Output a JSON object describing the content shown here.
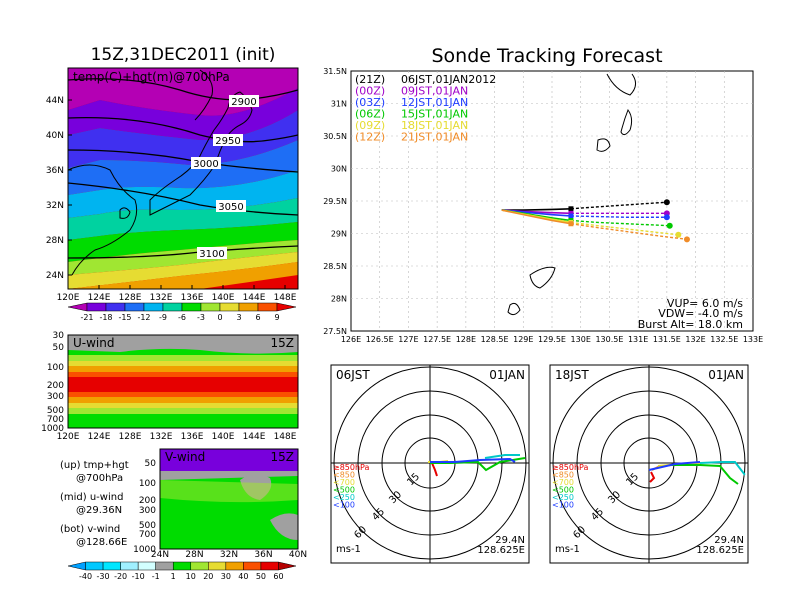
{
  "left_title": "15Z,31DEC2011 (init)",
  "right_title": "Sonde Tracking Forecast",
  "map": {
    "label": "temp(C)+hgt(m)@700hPa",
    "lat_ticks": [
      "44N",
      "40N",
      "36N",
      "32N",
      "28N",
      "24N"
    ],
    "lon_ticks": [
      "120E",
      "124E",
      "128E",
      "132E",
      "136E",
      "140E",
      "144E",
      "148E"
    ],
    "contours": [
      "2900",
      "2950",
      "3000",
      "3050",
      "3100"
    ],
    "cbar_labels": [
      "-21",
      "-18",
      "-15",
      "-12",
      "-9",
      "-6",
      "-3",
      "0",
      "3",
      "6",
      "9"
    ],
    "cbar_colors": [
      "#b400b4",
      "#7800dc",
      "#4030f0",
      "#1e6ef5",
      "#00b4f0",
      "#00d2a0",
      "#00dc00",
      "#a0e632",
      "#e6dc32",
      "#f0a000",
      "#fa5000",
      "#e60000"
    ]
  },
  "uwind": {
    "title": "U-wind",
    "time": "15Z",
    "p_ticks": [
      "30",
      "50",
      "100",
      "200",
      "300",
      "500",
      "700",
      "1000"
    ],
    "lon_ticks": [
      "120E",
      "124E",
      "128E",
      "132E",
      "136E",
      "140E",
      "144E",
      "148E"
    ]
  },
  "vwind": {
    "title": "V-wind",
    "time": "15Z",
    "p_ticks": [
      "50",
      "100",
      "200",
      "300",
      "500",
      "700",
      "1000"
    ],
    "lat_ticks": [
      "24N",
      "28N",
      "32N",
      "36N",
      "40N"
    ]
  },
  "wind_cbar": {
    "labels": [
      "-40",
      "-30",
      "-20",
      "-10",
      "-1",
      "1",
      "10",
      "20",
      "30",
      "40",
      "50",
      "60"
    ],
    "colors": [
      "#00a0ff",
      "#00c8ff",
      "#00e6ff",
      "#a0f0ff",
      "#d2ffff",
      "#a0a0a0",
      "#00dc00",
      "#a0e632",
      "#e6dc32",
      "#f0a000",
      "#fa5000",
      "#e60000",
      "#b40000"
    ]
  },
  "legend_notes": [
    "(up) tmp+hgt",
    "@700hPa",
    "(mid) u-wind",
    "@29.36N",
    "(bot) v-wind",
    "@128.66E"
  ],
  "track": {
    "legend": [
      {
        "code": "(21Z)",
        "text": "06JST,01JAN2012",
        "color": "#000000"
      },
      {
        "code": "(00Z)",
        "text": "09JST,01JAN",
        "color": "#a000c8"
      },
      {
        "code": "(03Z)",
        "text": "12JST,01JAN",
        "color": "#1e3cff"
      },
      {
        "code": "(06Z)",
        "text": "15JST,01JAN",
        "color": "#00c800"
      },
      {
        "code": "(09Z)",
        "text": "18JST,01JAN",
        "color": "#e6dc32"
      },
      {
        "code": "(12Z)",
        "text": "21JST,01JAN",
        "color": "#f08c28"
      }
    ],
    "lat_ticks": [
      "31.5N",
      "31N",
      "30.5N",
      "30N",
      "29.5N",
      "29N",
      "28.5N",
      "28N",
      "27.5N"
    ],
    "lon_ticks": [
      "126E",
      "126.5E",
      "127E",
      "127.5E",
      "128E",
      "128.5E",
      "129E",
      "129.5E",
      "130E",
      "130.5E",
      "131E",
      "131.5E",
      "132E",
      "132.5E",
      "133E"
    ],
    "vup": "VUP= 6.0 m/s",
    "vdw": "VDW= -4.0 m/s",
    "burst": "Burst Alt= 18.0 km"
  },
  "chart_data": {
    "type": "line",
    "title": "Sonde Tracking Forecast",
    "xlim": [
      126,
      133
    ],
    "ylim": [
      27.5,
      31.5
    ],
    "launch": {
      "lon": 128.625,
      "lat": 29.36
    },
    "series": [
      {
        "name": "(21Z) 06JST,01JAN2012",
        "lon": [
          128.625,
          129.0,
          129.5,
          129.83,
          130.3,
          130.8,
          131.3,
          131.5
        ],
        "lat": [
          29.36,
          29.36,
          29.37,
          29.38,
          29.41,
          29.44,
          29.47,
          29.48
        ],
        "burst": {
          "lon": 129.83,
          "lat": 29.38
        }
      },
      {
        "name": "(00Z) 09JST,01JAN",
        "lon": [
          128.625,
          129.0,
          129.5,
          129.83,
          130.3,
          130.8,
          131.3,
          131.5
        ],
        "lat": [
          29.36,
          29.34,
          29.32,
          29.31,
          29.31,
          29.31,
          29.31,
          29.31
        ],
        "burst": {
          "lon": 129.83,
          "lat": 29.31
        }
      },
      {
        "name": "(03Z) 12JST,01JAN",
        "lon": [
          128.625,
          129.0,
          129.5,
          129.83,
          130.3,
          130.8,
          131.3,
          131.5
        ],
        "lat": [
          29.36,
          29.33,
          29.29,
          29.27,
          29.26,
          29.25,
          29.25,
          29.25
        ],
        "burst": {
          "lon": 129.83,
          "lat": 29.27
        }
      },
      {
        "name": "(06Z) 15JST,01JAN",
        "lon": [
          128.625,
          129.0,
          129.5,
          129.83,
          130.3,
          130.8,
          131.3,
          131.55
        ],
        "lat": [
          29.36,
          29.31,
          29.24,
          29.2,
          29.17,
          29.15,
          29.13,
          29.12
        ],
        "burst": {
          "lon": 129.83,
          "lat": 29.2
        }
      },
      {
        "name": "(09Z) 18JST,01JAN",
        "lon": [
          128.625,
          129.0,
          129.5,
          129.83,
          130.3,
          130.8,
          131.3,
          131.7
        ],
        "lat": [
          29.36,
          29.3,
          29.22,
          29.17,
          29.12,
          29.07,
          29.02,
          28.98
        ],
        "burst": {
          "lon": 129.83,
          "lat": 29.17
        }
      },
      {
        "name": "(12Z) 21JST,01JAN",
        "lon": [
          128.625,
          129.0,
          129.5,
          129.83,
          130.3,
          130.8,
          131.3,
          131.85
        ],
        "lat": [
          29.36,
          29.29,
          29.2,
          29.15,
          29.09,
          29.03,
          28.97,
          28.91
        ],
        "burst": {
          "lon": 129.83,
          "lat": 29.15
        }
      }
    ]
  },
  "hodo1": {
    "time": "06JST",
    "date": "01JAN",
    "lat": "29.4N",
    "lon": "128.625E",
    "units": "ms-1",
    "rings": [
      "15",
      "30",
      "45",
      "60"
    ]
  },
  "hodo2": {
    "time": "18JST",
    "date": "01JAN",
    "lat": "29.4N",
    "lon": "128.625E",
    "units": "ms-1",
    "rings": [
      "15",
      "30",
      "45",
      "60"
    ]
  },
  "hodo_legend": [
    {
      "text": "≥850hPa",
      "color": "#e60000"
    },
    {
      "text": "<850",
      "color": "#f08c28"
    },
    {
      "text": "<700",
      "color": "#e6dc32"
    },
    {
      "text": "<500",
      "color": "#00c800"
    },
    {
      "text": "<250",
      "color": "#00c8c8"
    },
    {
      "text": "<100",
      "color": "#1e3cff"
    }
  ]
}
